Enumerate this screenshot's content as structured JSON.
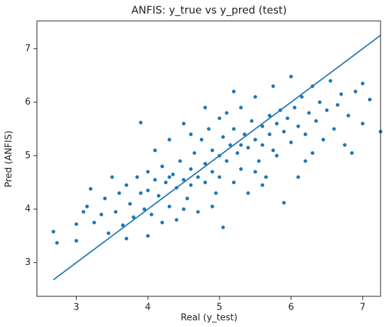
{
  "chart_data": {
    "type": "scatter",
    "title": "ANFIS: y_true vs y_pred (test)",
    "x_label": "Real (y_test)",
    "y_label": "Pred (ANFIS)",
    "xlim": [
      2.45,
      7.25
    ],
    "ylim": [
      2.37,
      7.52
    ],
    "xticks": [
      3,
      4,
      5,
      6,
      7
    ],
    "yticks": [
      3,
      4,
      5,
      6,
      7
    ],
    "grid": false,
    "series": [
      {
        "color": "#1f77b4",
        "x": [
          2.68,
          2.73,
          3.0,
          3.0,
          3.1,
          3.15,
          3.2,
          3.25,
          3.35,
          3.4,
          3.45,
          3.5,
          3.55,
          3.6,
          3.65,
          3.7,
          3.75,
          3.8,
          3.85,
          3.9,
          3.9,
          3.95,
          4.0,
          4.0,
          4.05,
          4.1,
          4.1,
          4.15,
          4.2,
          4.2,
          4.25,
          4.3,
          4.3,
          4.35,
          4.4,
          4.4,
          4.45,
          4.5,
          4.5,
          4.55,
          4.6,
          4.6,
          4.65,
          4.7,
          4.7,
          4.75,
          4.8,
          4.8,
          4.85,
          4.9,
          4.9,
          4.95,
          5.0,
          5.0,
          5.05,
          5.05,
          5.1,
          5.1,
          5.15,
          5.2,
          5.2,
          5.25,
          5.3,
          5.3,
          5.35,
          5.4,
          5.4,
          5.45,
          5.5,
          5.5,
          5.55,
          5.6,
          5.6,
          5.65,
          5.7,
          5.7,
          5.75,
          5.8,
          5.8,
          5.85,
          5.9,
          5.9,
          5.95,
          6.0,
          6.0,
          6.05,
          6.1,
          6.1,
          6.15,
          6.2,
          6.25,
          6.3,
          6.3,
          6.35,
          6.4,
          6.45,
          6.5,
          6.55,
          6.6,
          6.65,
          6.7,
          6.75,
          6.8,
          6.85,
          6.9,
          7.0,
          7.0,
          7.1,
          7.25,
          4.0,
          3.7,
          5.2,
          4.8,
          4.5,
          5.6,
          6.2,
          5.0,
          5.3,
          4.3,
          4.6,
          5.75,
          4.9,
          5.5
        ],
        "values": [
          3.58,
          3.37,
          3.72,
          3.41,
          3.95,
          4.05,
          4.38,
          3.75,
          3.9,
          4.2,
          3.55,
          4.6,
          3.95,
          4.3,
          3.7,
          4.45,
          4.1,
          3.85,
          4.6,
          5.62,
          4.3,
          4.0,
          4.7,
          4.35,
          3.9,
          4.55,
          5.1,
          4.25,
          3.75,
          4.8,
          4.5,
          4.05,
          5.3,
          4.65,
          4.4,
          3.8,
          4.9,
          4.55,
          5.6,
          4.2,
          4.75,
          4.45,
          5.05,
          4.6,
          3.95,
          5.3,
          4.85,
          4.5,
          5.5,
          4.7,
          5.1,
          4.3,
          5.0,
          4.6,
          3.66,
          5.35,
          5.8,
          4.9,
          5.2,
          4.5,
          5.5,
          5.05,
          5.9,
          4.75,
          5.4,
          5.15,
          4.3,
          5.65,
          5.3,
          6.1,
          4.9,
          5.55,
          5.2,
          4.6,
          5.75,
          5.4,
          6.3,
          5.0,
          5.6,
          5.85,
          4.12,
          5.45,
          5.7,
          6.48,
          5.25,
          5.9,
          5.55,
          4.6,
          6.1,
          5.4,
          5.8,
          6.3,
          5.05,
          5.65,
          6.0,
          5.3,
          5.85,
          6.4,
          5.5,
          5.95,
          6.15,
          5.2,
          5.75,
          5.05,
          6.2,
          6.35,
          5.6,
          6.05,
          5.45,
          3.5,
          3.45,
          6.2,
          5.9,
          4.0,
          4.45,
          4.9,
          5.7,
          5.2,
          4.6,
          5.4,
          5.1,
          4.05,
          4.7
        ]
      }
    ],
    "reference_line": {
      "color": "#1f77b4",
      "x": [
        2.68,
        7.25
      ],
      "values": [
        2.68,
        7.25
      ]
    }
  }
}
